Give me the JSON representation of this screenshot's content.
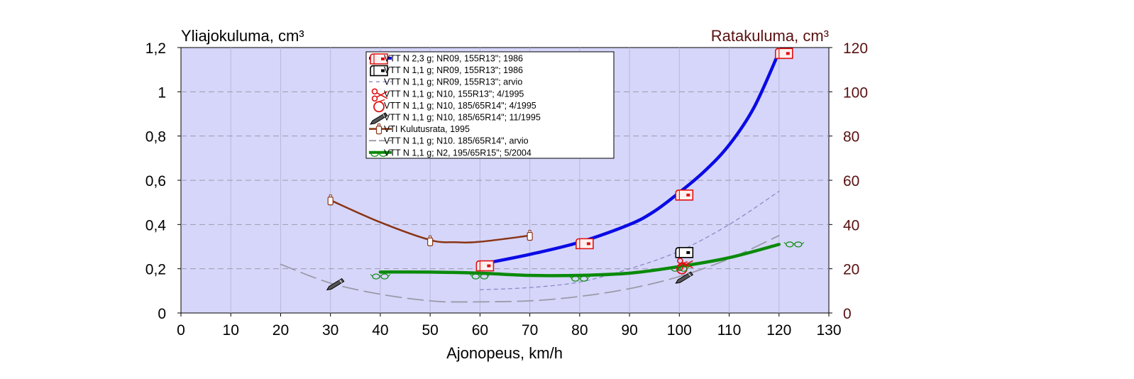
{
  "chart_data": {
    "type": "line",
    "y_left_label": "Yliajokuluma, cm³",
    "y_right_label": "Ratakuluma,  cm³",
    "xlabel": "Ajonopeus, km/h",
    "xlim": [
      0,
      130
    ],
    "ylim_left": [
      0,
      1.2
    ],
    "ylim_right": [
      0,
      120
    ],
    "x_ticks": [
      "0",
      "10",
      "20",
      "30",
      "40",
      "50",
      "60",
      "70",
      "80",
      "90",
      "100",
      "110",
      "120",
      "130"
    ],
    "y_left_ticks": [
      "0",
      "0,2",
      "0,4",
      "0,6",
      "0,8",
      "1",
      "1,2"
    ],
    "y_right_ticks": [
      "0",
      "20",
      "40",
      "60",
      "80",
      "100",
      "120"
    ],
    "grid": true,
    "plot_background": "#d6d6fa",
    "legend_position": "top-center",
    "series": [
      {
        "name": "VTT N 2,3 g; NR09, 155R13\"; 1986",
        "color": "#0a0ae6",
        "style": "thick",
        "axis": "left",
        "curve": [
          [
            60,
            0.22
          ],
          [
            70,
            0.265
          ],
          [
            80,
            0.32
          ],
          [
            90,
            0.4
          ],
          [
            95,
            0.46
          ],
          [
            100,
            0.545
          ],
          [
            105,
            0.64
          ],
          [
            110,
            0.76
          ],
          [
            115,
            0.93
          ],
          [
            120,
            1.18
          ]
        ],
        "markers": [
          [
            61,
            0.21
          ],
          [
            81,
            0.31
          ],
          [
            101,
            0.53
          ],
          [
            121,
            1.17
          ]
        ],
        "marker": "mailbox-red"
      },
      {
        "name": "VTT N 1,1 g; NR09, 155R13\"; 1986",
        "color": "#000000",
        "style": "marker",
        "axis": "left",
        "markers": [
          [
            101,
            0.27
          ]
        ],
        "marker": "mailbox-black"
      },
      {
        "name": "VTT N 1,1 g; NR09, 155R13\"; arvio",
        "color": "#8a8ac8",
        "style": "dashed-thin",
        "axis": "left",
        "curve": [
          [
            60,
            0.105
          ],
          [
            70,
            0.115
          ],
          [
            80,
            0.14
          ],
          [
            90,
            0.2
          ],
          [
            100,
            0.28
          ],
          [
            110,
            0.4
          ],
          [
            120,
            0.55
          ]
        ]
      },
      {
        "name": "VTT N 1,1 g; N10, 155R13\"; 4/1995",
        "color": "#e01010",
        "style": "marker",
        "axis": "left",
        "markers": [
          [
            101,
            0.22
          ]
        ],
        "marker": "scissors"
      },
      {
        "name": "VTT N 1,1 g; N10, 185/65R14\"; 4/1995",
        "color": "#e01010",
        "style": "marker",
        "axis": "left",
        "markers": [
          [
            100.5,
            0.2
          ]
        ],
        "marker": "circle-red"
      },
      {
        "name": "VTT N 1,1 g; N10, 185/65R14\"; 11/1995",
        "color": "#000000",
        "style": "marker",
        "axis": "left",
        "markers": [
          [
            31,
            0.13
          ],
          [
            101,
            0.16
          ]
        ],
        "marker": "pencil"
      },
      {
        "name": "VTI Kulutusrata, 1995",
        "color": "#8a3414",
        "style": "solid",
        "axis": "right",
        "curve": [
          [
            30,
            51
          ],
          [
            40,
            41
          ],
          [
            50,
            33
          ],
          [
            55,
            32
          ],
          [
            60,
            32.2
          ],
          [
            70,
            35
          ]
        ],
        "markers": [
          [
            30,
            50.5
          ],
          [
            50,
            32
          ],
          [
            70,
            34.5
          ]
        ],
        "marker": "bottle"
      },
      {
        "name": "VTT N 1,1 g; N10. 185/65R14\", arvio",
        "color": "#9a9aa8",
        "style": "dashed-long",
        "axis": "left",
        "curve": [
          [
            20,
            0.22
          ],
          [
            30,
            0.135
          ],
          [
            40,
            0.085
          ],
          [
            50,
            0.055
          ],
          [
            57,
            0.05
          ],
          [
            70,
            0.055
          ],
          [
            80,
            0.075
          ],
          [
            90,
            0.11
          ],
          [
            100,
            0.165
          ],
          [
            110,
            0.245
          ],
          [
            120,
            0.35
          ]
        ]
      },
      {
        "name": "VTT N 1,1 g; N2, 195/65R15\"; 5/2004",
        "color": "#0a8a0a",
        "style": "thick",
        "axis": "left",
        "curve": [
          [
            40,
            0.185
          ],
          [
            50,
            0.185
          ],
          [
            60,
            0.18
          ],
          [
            70,
            0.17
          ],
          [
            80,
            0.17
          ],
          [
            90,
            0.18
          ],
          [
            100,
            0.21
          ],
          [
            110,
            0.25
          ],
          [
            120,
            0.31
          ]
        ],
        "markers": [
          [
            40,
            0.165
          ],
          [
            60,
            0.165
          ],
          [
            80,
            0.155
          ],
          [
            100,
            0.2
          ],
          [
            123,
            0.31
          ]
        ],
        "marker": "glasses"
      }
    ]
  }
}
